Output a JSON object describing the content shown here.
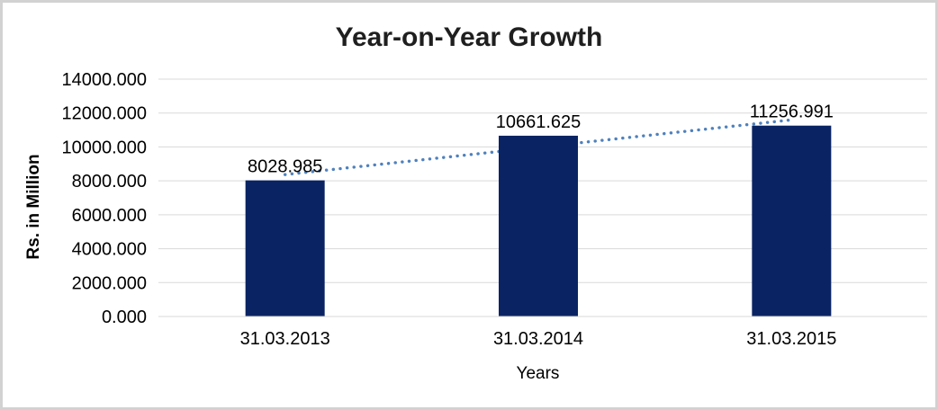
{
  "chart_data": {
    "type": "bar",
    "title": "Year-on-Year Growth",
    "xlabel": "Years",
    "ylabel": "Rs. in Million",
    "categories": [
      "31.03.2013",
      "31.03.2014",
      "31.03.2015"
    ],
    "values": [
      8028.985,
      10661.625,
      11256.991
    ],
    "data_labels": [
      "8028.985",
      "10661.625",
      "11256.991"
    ],
    "ylim": [
      0,
      14000
    ],
    "ytick_step": 2000,
    "ytick_labels": [
      "0.000",
      "2000.000",
      "4000.000",
      "6000.000",
      "8000.000",
      "10000.000",
      "12000.000",
      "14000.000"
    ],
    "grid": true,
    "legend": "none",
    "bar_color": "#0a2463",
    "gridline_color": "#d9d9d9",
    "axis_line_color": "#d9d9d9",
    "trendline": {
      "type": "linear",
      "style": "dotted",
      "color": "#4f81bd",
      "start_value": 8368.5,
      "end_value": 11596.5
    }
  }
}
